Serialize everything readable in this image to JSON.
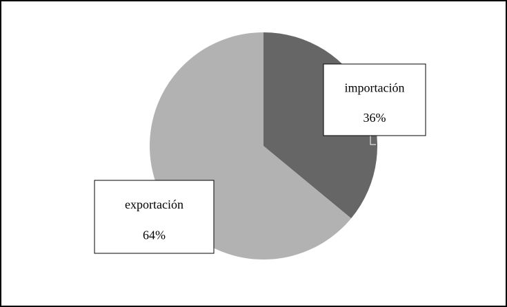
{
  "chart_data": {
    "type": "pie",
    "categories": [
      "importación",
      "exportación"
    ],
    "values": [
      36,
      64
    ],
    "value_labels": [
      "36%",
      "64%"
    ],
    "colors": [
      "#666666",
      "#b2b2b2"
    ]
  }
}
